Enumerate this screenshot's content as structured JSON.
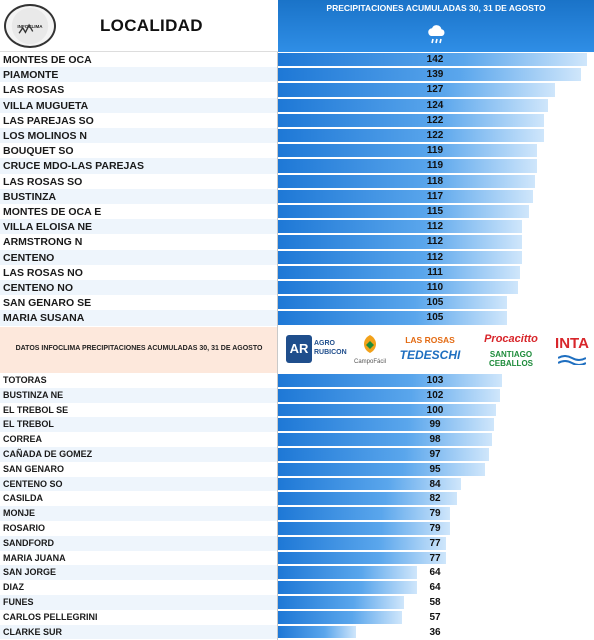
{
  "header": {
    "left_title": "LOCALIDAD",
    "right_title": "PRECIPITACIONES ACUMULADAS 30, 31 DE AGOSTO",
    "weather_icon": "rain-cloud-icon",
    "logo_icon": "infoclima-logo"
  },
  "sponsor": {
    "text": "DATOS INFOCLIMA PRECIPITACIONES ACUMULADAS 30, 31 DE AGOSTO",
    "agro": {
      "mark": "AR",
      "line1": "AGRO",
      "line2": "RUBICON"
    },
    "campo": "CampoFácil",
    "rosas": {
      "line1": "LAS ROSAS",
      "line2": "TEDESCHI"
    },
    "procacitto": {
      "line1": "Procacitto",
      "line2": "SANTIAGO CEBALLOS"
    },
    "inta": "INTA"
  },
  "colors": {
    "bar_start": "#1e78d6",
    "bar_end": "#cfe6fb",
    "header_blue": "#1a73c8",
    "band_blue": "#d6e8f8"
  },
  "chart_data": {
    "type": "bar",
    "orientation": "horizontal",
    "title": "PRECIPITACIONES ACUMULADAS 30, 31 DE AGOSTO",
    "categories_group1": [
      "MONTES DE OCA",
      "PIAMONTE",
      "LAS ROSAS",
      "VILLA MUGUETA",
      "LAS PAREJAS SO",
      "LOS MOLINOS N",
      "BOUQUET SO",
      "CRUCE MDO-LAS PAREJAS",
      "LAS ROSAS SO",
      "BUSTINZA",
      "MONTES DE OCA E",
      "VILLA ELOISA NE",
      "ARMSTRONG N",
      "CENTENO",
      "LAS ROSAS NO",
      "CENTENO NO",
      "SAN GENARO SE",
      "MARIA SUSANA"
    ],
    "values_group1": [
      142,
      139,
      127,
      124,
      122,
      122,
      119,
      119,
      118,
      117,
      115,
      112,
      112,
      112,
      111,
      110,
      105,
      105
    ],
    "categories_group2": [
      "TOTORAS",
      "BUSTINZA NE",
      "EL TREBOL SE",
      "EL TREBOL",
      "CORREA",
      "CAÑADA DE GOMEZ",
      "SAN GENARO",
      "CENTENO SO",
      "CASILDA",
      "MONJE",
      "ROSARIO",
      "SANDFORD",
      "MARIA JUANA",
      "SAN JORGE",
      "DIAZ",
      "FUNES",
      "CARLOS PELLEGRINI",
      "CLARKE SUR"
    ],
    "values_group2": [
      103,
      102,
      100,
      99,
      98,
      97,
      95,
      84,
      82,
      79,
      79,
      77,
      77,
      64,
      64,
      58,
      57,
      36
    ],
    "xlim": [
      0,
      145
    ]
  }
}
